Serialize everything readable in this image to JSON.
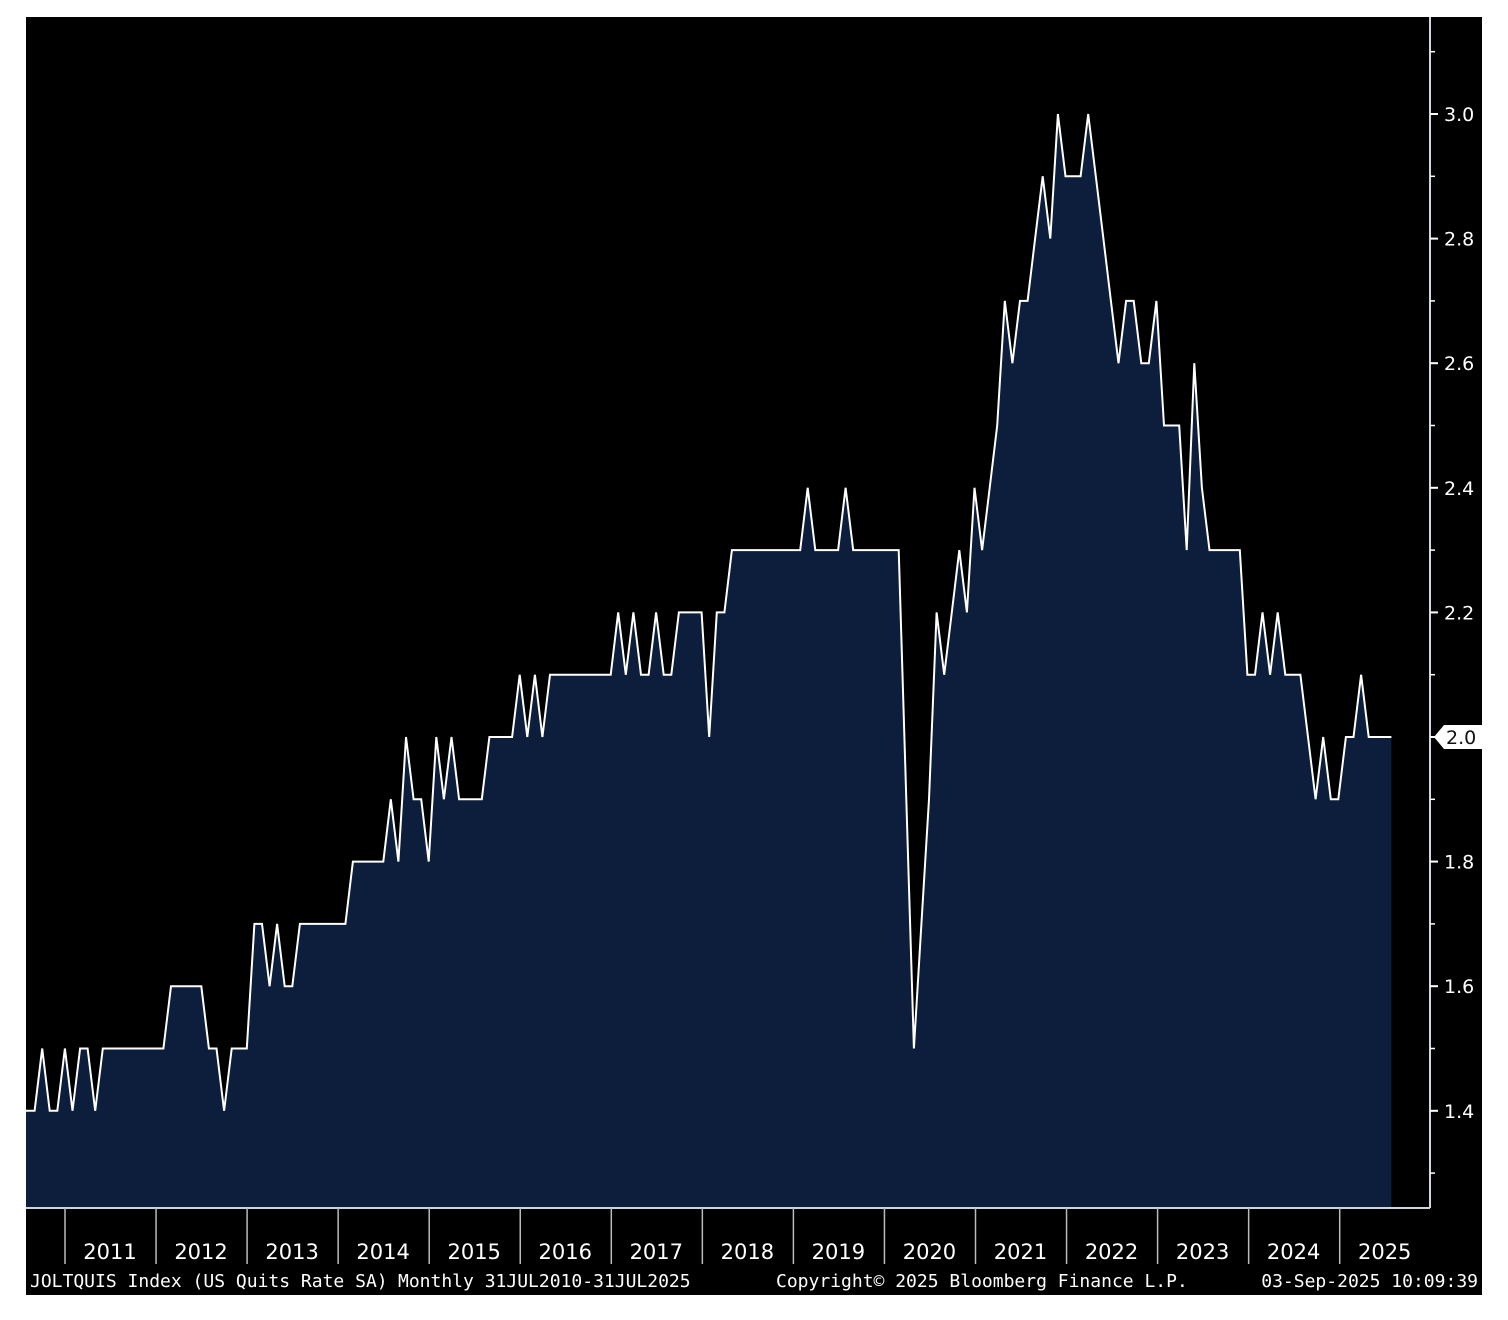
{
  "chart_data": {
    "type": "area",
    "title": "JOLTQUIS Index (US Quits Rate SA)",
    "frequency": "Monthly",
    "x_start": "2010-07",
    "x_end": "2025-07",
    "ylim": [
      1.243,
      3.155
    ],
    "y_ticks": [
      "1.4",
      "1.6",
      "1.8",
      "2.0",
      "2.2",
      "2.4",
      "2.6",
      "2.8",
      "3.0"
    ],
    "x_tick_labels": [
      "2011",
      "2012",
      "2013",
      "2014",
      "2015",
      "2016",
      "2017",
      "2018",
      "2019",
      "2020",
      "2021",
      "2022",
      "2023",
      "2024",
      "2025"
    ],
    "last_value_label": "2.0",
    "values": [
      1.4,
      1.4,
      1.5,
      1.4,
      1.4,
      1.5,
      1.4,
      1.5,
      1.5,
      1.4,
      1.5,
      1.5,
      1.5,
      1.5,
      1.5,
      1.5,
      1.5,
      1.5,
      1.5,
      1.6,
      1.6,
      1.6,
      1.6,
      1.6,
      1.5,
      1.5,
      1.4,
      1.5,
      1.5,
      1.5,
      1.7,
      1.7,
      1.6,
      1.7,
      1.6,
      1.6,
      1.7,
      1.7,
      1.7,
      1.7,
      1.7,
      1.7,
      1.7,
      1.8,
      1.8,
      1.8,
      1.8,
      1.8,
      1.9,
      1.8,
      2.0,
      1.9,
      1.9,
      1.8,
      2.0,
      1.9,
      2.0,
      1.9,
      1.9,
      1.9,
      1.9,
      2.0,
      2.0,
      2.0,
      2.0,
      2.1,
      2.0,
      2.1,
      2.0,
      2.1,
      2.1,
      2.1,
      2.1,
      2.1,
      2.1,
      2.1,
      2.1,
      2.1,
      2.2,
      2.1,
      2.2,
      2.1,
      2.1,
      2.2,
      2.1,
      2.1,
      2.2,
      2.2,
      2.2,
      2.2,
      2.0,
      2.2,
      2.2,
      2.3,
      2.3,
      2.3,
      2.3,
      2.3,
      2.3,
      2.3,
      2.3,
      2.3,
      2.3,
      2.4,
      2.3,
      2.3,
      2.3,
      2.3,
      2.4,
      2.3,
      2.3,
      2.3,
      2.3,
      2.3,
      2.3,
      2.3,
      1.9,
      1.5,
      1.7,
      1.9,
      2.2,
      2.1,
      2.2,
      2.3,
      2.2,
      2.4,
      2.3,
      2.4,
      2.5,
      2.7,
      2.6,
      2.7,
      2.7,
      2.8,
      2.9,
      2.8,
      3.0,
      2.9,
      2.9,
      2.9,
      3.0,
      2.9,
      2.8,
      2.7,
      2.6,
      2.7,
      2.7,
      2.6,
      2.6,
      2.7,
      2.5,
      2.5,
      2.5,
      2.3,
      2.6,
      2.4,
      2.3,
      2.3,
      2.3,
      2.3,
      2.3,
      2.1,
      2.1,
      2.2,
      2.1,
      2.2,
      2.1,
      2.1,
      2.1,
      2.0,
      1.9,
      2.0,
      1.9,
      1.9,
      2.0,
      2.0,
      2.1,
      2.0,
      2.0,
      2.0,
      2.0
    ],
    "colors": {
      "background": "#000000",
      "fill": "#0c1e3c",
      "line": "#ffffff"
    }
  },
  "footer": {
    "series": "JOLTQUIS Index (US Quits Rate SA)",
    "range": "Monthly 31JUL2010-31JUL2025",
    "copyright": "Copyright© 2025 Bloomberg Finance L.P.",
    "timestamp": "03-Sep-2025 10:09:39"
  }
}
